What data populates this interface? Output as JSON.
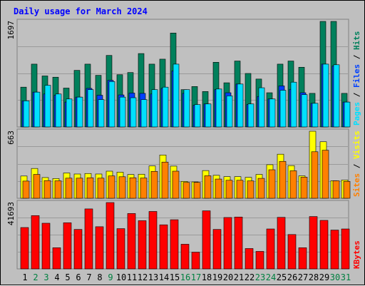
{
  "title": "Daily usage for March 2024",
  "colors": {
    "hits": "#00805c",
    "files": "#0040ff",
    "pages": "#00e0ff",
    "visits": "#ffff00",
    "sites": "#ff8000",
    "kbytes": "#ff0000",
    "weekend_label": "#008040",
    "weekday_label": "#000000",
    "separator": "#000000"
  },
  "chart_data": [
    {
      "type": "bar",
      "categories": [
        "1",
        "2",
        "3",
        "4",
        "5",
        "6",
        "7",
        "8",
        "9",
        "10",
        "11",
        "12",
        "13",
        "14",
        "15",
        "16",
        "17",
        "18",
        "19",
        "20",
        "21",
        "22",
        "23",
        "24",
        "25",
        "26",
        "27",
        "28",
        "29",
        "30",
        "31"
      ],
      "weekend_days": [
        "2",
        "3",
        "9",
        "16",
        "17",
        "23",
        "24",
        "30",
        "31"
      ],
      "ymax_label": "1697",
      "ylim": [
        0,
        1697
      ],
      "legend": [
        "Pages",
        "Files",
        "Hits"
      ],
      "series": [
        {
          "name": "Hits",
          "values": [
            640,
            1010,
            820,
            800,
            625,
            910,
            1010,
            830,
            1150,
            840,
            875,
            1180,
            1010,
            1090,
            1510,
            600,
            650,
            570,
            1040,
            710,
            1060,
            860,
            770,
            550,
            1010,
            1060,
            960,
            540,
            1697,
            1697,
            540
          ]
        },
        {
          "name": "Files",
          "values": [
            420,
            560,
            530,
            510,
            400,
            480,
            620,
            510,
            750,
            515,
            545,
            540,
            530,
            620,
            900,
            540,
            350,
            370,
            600,
            550,
            690,
            360,
            490,
            450,
            660,
            605,
            550,
            380,
            1010,
            980,
            400
          ]
        },
        {
          "name": "Pages",
          "values": [
            420,
            560,
            670,
            530,
            450,
            480,
            600,
            440,
            730,
            480,
            470,
            440,
            600,
            640,
            1010,
            600,
            360,
            370,
            610,
            500,
            690,
            370,
            630,
            450,
            590,
            720,
            520,
            380,
            1010,
            1000,
            400
          ]
        }
      ]
    },
    {
      "type": "bar",
      "categories": [
        "1",
        "2",
        "3",
        "4",
        "5",
        "6",
        "7",
        "8",
        "9",
        "10",
        "11",
        "12",
        "13",
        "14",
        "15",
        "16",
        "17",
        "18",
        "19",
        "20",
        "21",
        "22",
        "23",
        "24",
        "25",
        "26",
        "27",
        "28",
        "29",
        "30",
        "31"
      ],
      "ymax_label": "663",
      "ylim": [
        0,
        663
      ],
      "legend": [
        "Sites",
        "Visits"
      ],
      "series": [
        {
          "name": "Visits",
          "values": [
            220,
            295,
            205,
            195,
            250,
            240,
            245,
            240,
            268,
            258,
            235,
            238,
            320,
            428,
            318,
            167,
            162,
            274,
            227,
            214,
            214,
            207,
            236,
            332,
            436,
            323,
            222,
            663,
            559,
            174,
            180
          ]
        },
        {
          "name": "Sites",
          "values": [
            170,
            236,
            175,
            173,
            199,
            199,
            203,
            199,
            221,
            213,
            203,
            200,
            266,
            358,
            268,
            157,
            157,
            223,
            190,
            178,
            178,
            172,
            197,
            282,
            365,
            272,
            209,
            460,
            475,
            173,
            167
          ]
        }
      ]
    },
    {
      "type": "bar",
      "categories": [
        "1",
        "2",
        "3",
        "4",
        "5",
        "6",
        "7",
        "8",
        "9",
        "10",
        "11",
        "12",
        "13",
        "14",
        "15",
        "16",
        "17",
        "18",
        "19",
        "20",
        "21",
        "22",
        "23",
        "24",
        "25",
        "26",
        "27",
        "28",
        "29",
        "30",
        "31"
      ],
      "ymax_label": "41693",
      "ylim": [
        0,
        41693
      ],
      "legend": [
        "KBytes"
      ],
      "series": [
        {
          "name": "KBytes",
          "values": [
            26000,
            33500,
            28700,
            13300,
            29000,
            24800,
            37700,
            26500,
            41693,
            25300,
            34800,
            30300,
            36100,
            27700,
            30900,
            15500,
            10500,
            36500,
            24800,
            32300,
            32600,
            12800,
            11000,
            25100,
            32400,
            21600,
            13300,
            32900,
            30500,
            24400,
            25100
          ]
        }
      ]
    }
  ]
}
